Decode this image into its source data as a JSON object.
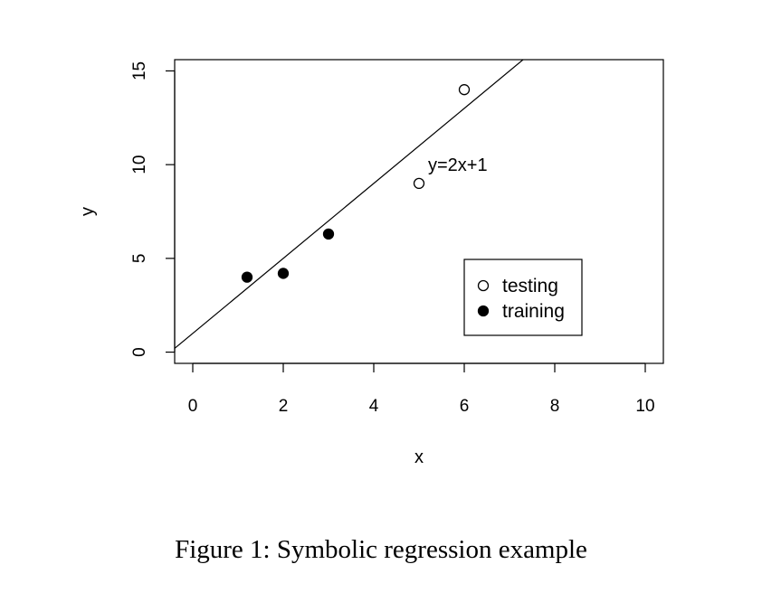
{
  "caption": "Figure 1: Symbolic regression example",
  "chart_data": {
    "type": "scatter",
    "title": "",
    "xlabel": "x",
    "ylabel": "y",
    "xlim": [
      -0.4,
      10.4
    ],
    "ylim": [
      -0.6,
      15.6
    ],
    "x_ticks": [
      0,
      2,
      4,
      6,
      8,
      10
    ],
    "y_ticks": [
      0,
      5,
      10,
      15
    ],
    "grid": false,
    "legend_position": "bottom-right",
    "series": [
      {
        "name": "testing",
        "marker": "open-circle",
        "points": [
          {
            "x": 5,
            "y": 9
          },
          {
            "x": 6,
            "y": 14
          }
        ]
      },
      {
        "name": "training",
        "marker": "filled-circle",
        "points": [
          {
            "x": 1.2,
            "y": 4
          },
          {
            "x": 2,
            "y": 4.2
          },
          {
            "x": 3,
            "y": 6.3
          }
        ]
      }
    ],
    "fit_line": {
      "slope": 2,
      "intercept": 1
    },
    "annotation": {
      "text": "y=2x+1",
      "x": 5.2,
      "y": 10
    },
    "colors": {
      "ink": "#000000",
      "background": "#ffffff"
    }
  }
}
